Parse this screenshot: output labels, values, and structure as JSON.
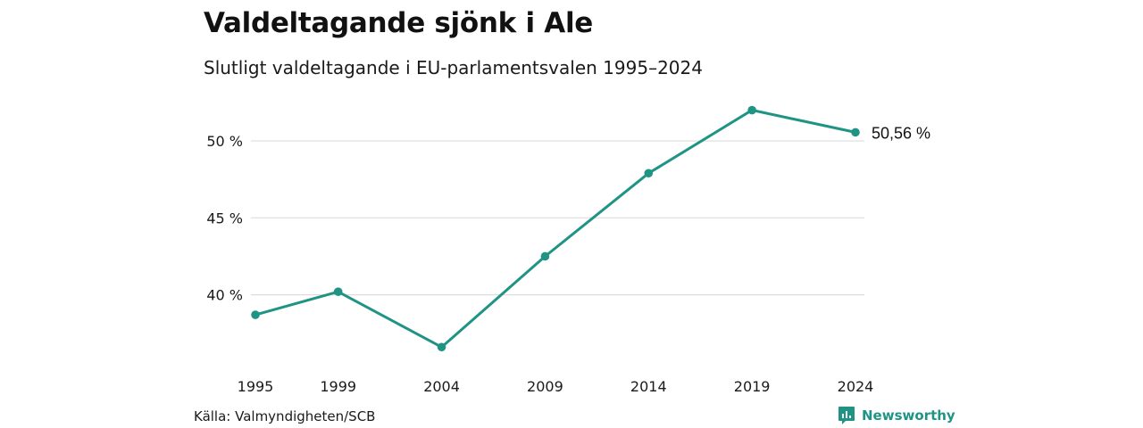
{
  "title": "Valdeltagande sjönk i Ale",
  "subtitle": "Slutligt valdeltagande i EU-parlamentsvalen 1995–2024",
  "source": "Källa: Valmyndigheten/SCB",
  "brand": {
    "name": "Newsworthy",
    "logo_icon": "newsworthy-logo-icon",
    "color": "#1f9485"
  },
  "colors": {
    "line": "#1f9485",
    "grid": "#dddddd",
    "text": "#1a1a1a"
  },
  "chart_data": {
    "type": "line",
    "title": "Valdeltagande sjönk i Ale",
    "subtitle": "Slutligt valdeltagande i EU-parlamentsvalen 1995–2024",
    "xlabel": "",
    "ylabel": "",
    "x": [
      1995,
      1999,
      2004,
      2009,
      2014,
      2019,
      2024
    ],
    "series": [
      {
        "values": [
          38.7,
          40.2,
          36.6,
          42.5,
          47.9,
          52.0,
          50.56
        ]
      }
    ],
    "x_tick_labels": [
      "1995",
      "1999",
      "2004",
      "2009",
      "2014",
      "2019",
      "2024"
    ],
    "y_ticks": [
      40,
      45,
      50
    ],
    "y_tick_labels": [
      "40 %",
      "45 %",
      "50 %"
    ],
    "ylim": [
      35.4,
      52.9
    ],
    "grid": true,
    "legend": "none",
    "end_label": "50,56 %"
  }
}
